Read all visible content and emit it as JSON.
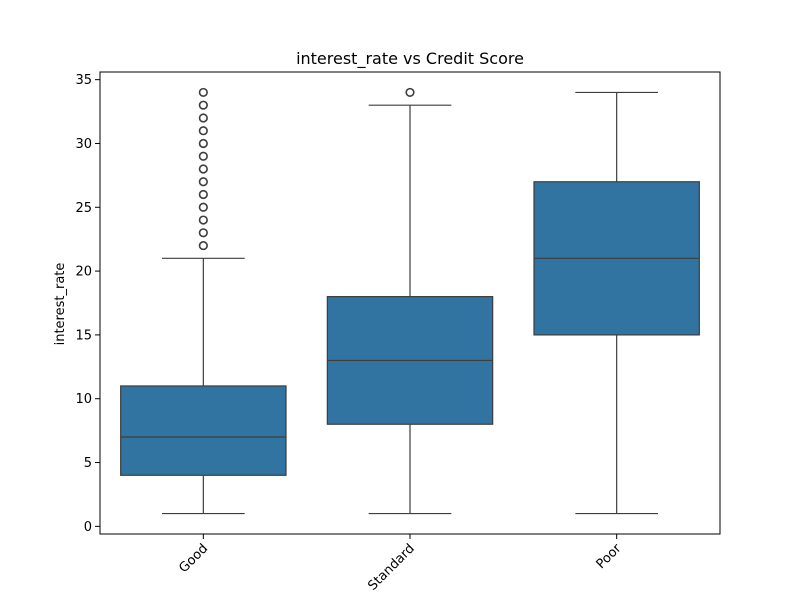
{
  "chart_data": {
    "type": "box",
    "title": "interest_rate vs Credit Score",
    "xlabel": "",
    "ylabel": "interest_rate",
    "ylim": [
      -0.6,
      35.6
    ],
    "yticks": [
      0,
      5,
      10,
      15,
      20,
      25,
      30,
      35
    ],
    "grid": false,
    "legend": "none",
    "box_color": "#3274a1",
    "line_color": "#3d3d3d",
    "categories": [
      "Good",
      "Standard",
      "Poor"
    ],
    "boxes": [
      {
        "category": "Good",
        "whisker_low": 1,
        "q1": 4,
        "median": 7,
        "q3": 11,
        "whisker_high": 21,
        "outliers": [
          22,
          23,
          24,
          25,
          26,
          27,
          28,
          29,
          30,
          31,
          32,
          33,
          34
        ]
      },
      {
        "category": "Standard",
        "whisker_low": 1,
        "q1": 8,
        "median": 13,
        "q3": 18,
        "whisker_high": 33,
        "outliers": [
          34
        ]
      },
      {
        "category": "Poor",
        "whisker_low": 1,
        "q1": 15,
        "median": 21,
        "q3": 27,
        "whisker_high": 34,
        "outliers": []
      }
    ]
  }
}
